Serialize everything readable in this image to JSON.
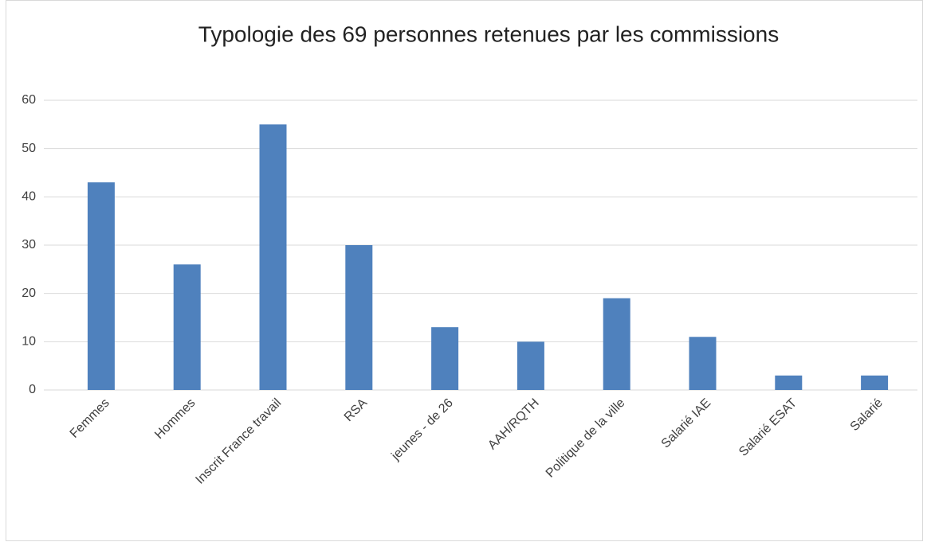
{
  "chart_data": {
    "type": "bar",
    "title": "Typologie des 69 personnes retenues par les commissions",
    "categories": [
      "Femmes",
      "Hommes",
      "Inscrit France travail",
      "RSA",
      "jeunes - de 26",
      "AAH/RQTH",
      "Politique de la ville",
      "Salarié IAE",
      "Salarié ESAT",
      "Salarié"
    ],
    "values": [
      43,
      26,
      55,
      30,
      13,
      10,
      19,
      11,
      3,
      3
    ],
    "color": "#4f81bd",
    "ylim": [
      0,
      60
    ],
    "yticks": [
      0,
      10,
      20,
      30,
      40,
      50,
      60
    ],
    "grid": true
  }
}
